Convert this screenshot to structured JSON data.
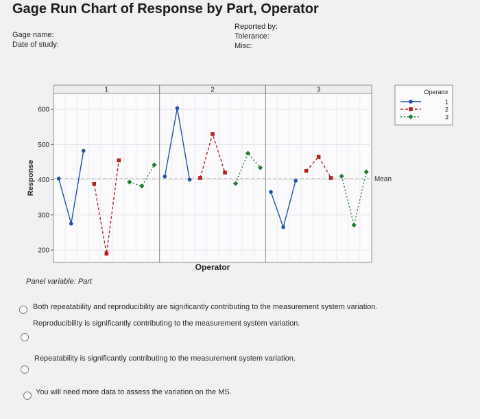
{
  "header": {
    "title": "Gage Run Chart of Response by Part, Operator",
    "gage_name_label": "Gage name:",
    "date_label": "Date of study:",
    "reported_label": "Reported by:",
    "tolerance_label": "Tolerance:",
    "misc_label": "Misc:"
  },
  "chart_data": {
    "type": "line",
    "title": "Gage Run Chart of Response by Part, Operator",
    "ylabel": "Response",
    "xlabel": "Operator",
    "panel_variable_label": "Panel variable: Part",
    "panels": [
      "1",
      "2",
      "3"
    ],
    "yticks": [
      200,
      300,
      400,
      500,
      600
    ],
    "ylim": [
      165,
      645
    ],
    "mean_label": "Mean",
    "mean_value": 404,
    "legend_title": "Operator",
    "legend_position": "right",
    "grid": true,
    "colors": {
      "1": "#1f4fa8",
      "2": "#b22222",
      "3": "#1e7b2e"
    },
    "series": [
      {
        "name": "1",
        "marker": "circle",
        "panels": [
          [
            403,
            275,
            482
          ],
          [
            409,
            603,
            400
          ],
          [
            365,
            265,
            397
          ]
        ]
      },
      {
        "name": "2",
        "marker": "square",
        "panels": [
          [
            388,
            190,
            455
          ],
          [
            405,
            530,
            420
          ],
          [
            425,
            465,
            405
          ]
        ]
      },
      {
        "name": "3",
        "marker": "diamond",
        "panels": [
          [
            393,
            382,
            442
          ],
          [
            389,
            475,
            434
          ],
          [
            410,
            271,
            422
          ]
        ]
      }
    ]
  },
  "question": {
    "options": [
      "Both repeatability and reproducibility are significantly contributing to the measurement system variation.",
      "Reproducibility is significantly contributing to the measurement system variation.",
      "Repeatability is significantly contributing to the measurement system variation.",
      "You will need more data to assess the variation on the MS."
    ]
  }
}
